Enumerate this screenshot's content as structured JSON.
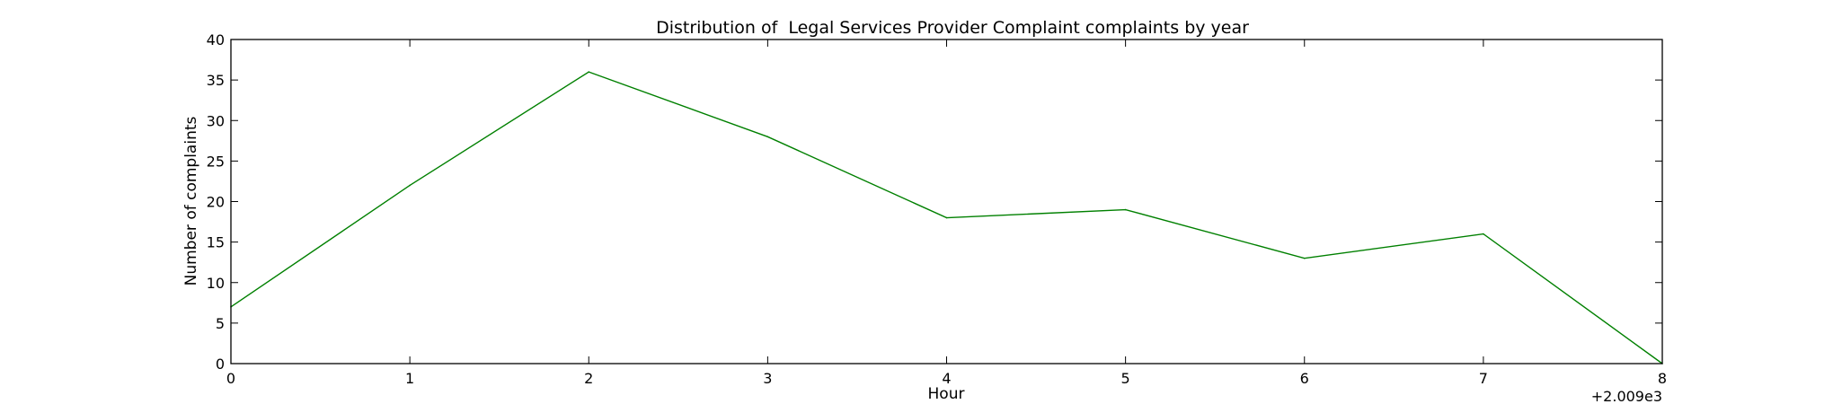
{
  "chart_data": {
    "type": "line",
    "title": "Distribution of  Legal Services Provider Complaint complaints by year",
    "xlabel": "Hour",
    "ylabel": "Number of complaints",
    "x_offset_label": "+2.009e3",
    "x": [
      0,
      1,
      2,
      3,
      4,
      5,
      6,
      7,
      8
    ],
    "series": [
      {
        "values": [
          7,
          22,
          36,
          28,
          18,
          19,
          13,
          16,
          0
        ],
        "color": "#008000"
      }
    ],
    "xlim": [
      0,
      8
    ],
    "ylim": [
      0,
      40
    ],
    "xticks": [
      "0",
      "1",
      "2",
      "3",
      "4",
      "5",
      "6",
      "7",
      "8"
    ],
    "yticks": [
      "0",
      "5",
      "10",
      "15",
      "20",
      "25",
      "30",
      "35",
      "40"
    ],
    "grid": false,
    "legend": "none"
  }
}
